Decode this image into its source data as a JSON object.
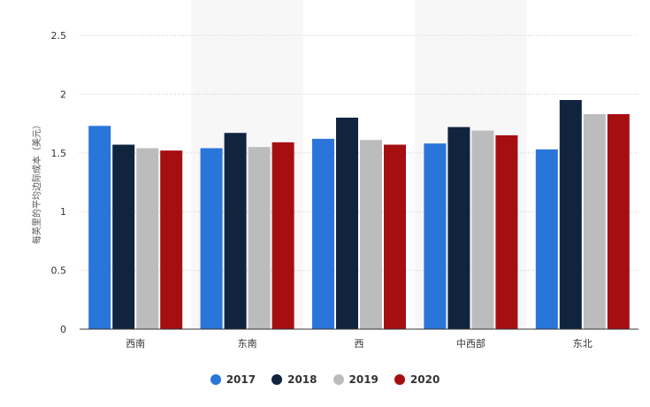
{
  "colors": {
    "series": [
      "#2a75d9",
      "#10243f",
      "#bcbcbc",
      "#a50f12"
    ],
    "grid": "#cccccc",
    "axis": "#333333",
    "band": "#f7f7f7",
    "text": "#333333"
  },
  "chart_data": {
    "type": "bar",
    "title": "",
    "xlabel": "",
    "ylabel": "每英里的平均边际成本（美元）",
    "ylim": [
      0,
      2.5
    ],
    "yticks": [
      "0",
      "0.5",
      "1",
      "1.5",
      "2",
      "2.5"
    ],
    "grid": true,
    "legend_position": "bottom",
    "categories": [
      "西南",
      "东南",
      "西",
      "中西部",
      "东北"
    ],
    "series": [
      {
        "name": "2017",
        "values": [
          1.73,
          1.54,
          1.62,
          1.58,
          1.53
        ]
      },
      {
        "name": "2018",
        "values": [
          1.57,
          1.67,
          1.8,
          1.72,
          1.95
        ]
      },
      {
        "name": "2019",
        "values": [
          1.54,
          1.55,
          1.61,
          1.69,
          1.83
        ]
      },
      {
        "name": "2020",
        "values": [
          1.52,
          1.59,
          1.57,
          1.65,
          1.83
        ]
      }
    ]
  }
}
